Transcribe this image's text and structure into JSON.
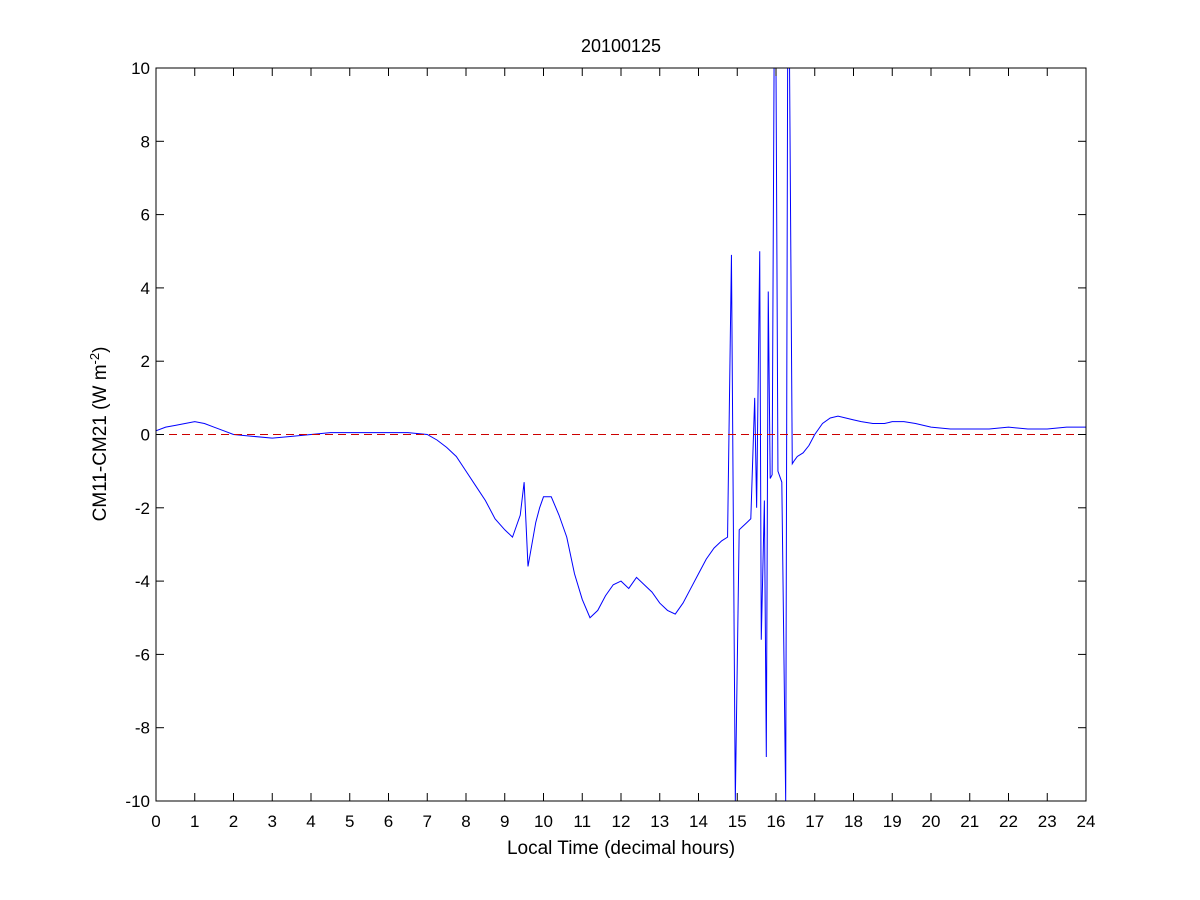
{
  "chart_data": {
    "type": "line",
    "title": "20100125",
    "xlabel": "Local Time (decimal hours)",
    "ylabel_main": "CM11-CM21 (W m",
    "ylabel_sup": "-2",
    "ylabel_close": ")",
    "xlim": [
      0,
      24
    ],
    "ylim": [
      -10,
      10
    ],
    "x_ticks": [
      0,
      1,
      2,
      3,
      4,
      5,
      6,
      7,
      8,
      9,
      10,
      11,
      12,
      13,
      14,
      15,
      16,
      17,
      18,
      19,
      20,
      21,
      22,
      23,
      24
    ],
    "y_ticks": [
      -10,
      -8,
      -6,
      -4,
      -2,
      0,
      2,
      4,
      6,
      8,
      10
    ],
    "grid": false,
    "series": [
      {
        "color": "#0000ff",
        "style": "solid",
        "x": [
          0,
          0.25,
          0.5,
          0.75,
          1.0,
          1.25,
          1.5,
          1.75,
          2.0,
          2.5,
          3.0,
          3.5,
          4.0,
          4.5,
          5.0,
          5.5,
          6.0,
          6.5,
          7.0,
          7.25,
          7.5,
          7.75,
          8.0,
          8.25,
          8.5,
          8.75,
          9.0,
          9.2,
          9.3,
          9.4,
          9.5,
          9.6,
          9.7,
          9.8,
          9.9,
          10.0,
          10.2,
          10.4,
          10.6,
          10.8,
          11.0,
          11.2,
          11.4,
          11.6,
          11.8,
          12.0,
          12.2,
          12.4,
          12.6,
          12.8,
          13.0,
          13.2,
          13.4,
          13.6,
          13.8,
          14.0,
          14.2,
          14.4,
          14.6,
          14.75,
          14.85,
          14.9,
          14.95,
          15.05,
          15.15,
          15.25,
          15.35,
          15.45,
          15.5,
          15.58,
          15.62,
          15.7,
          15.75,
          15.8,
          15.85,
          15.9,
          15.95,
          16.0,
          16.05,
          16.15,
          16.25,
          16.3,
          16.35,
          16.42,
          16.48,
          16.55,
          16.7,
          16.85,
          17.0,
          17.2,
          17.4,
          17.6,
          17.8,
          18.0,
          18.2,
          18.5,
          18.8,
          19.0,
          19.3,
          19.6,
          20.0,
          20.5,
          21.0,
          21.5,
          22.0,
          22.5,
          23.0,
          23.5,
          24.0
        ],
        "y": [
          0.1,
          0.2,
          0.25,
          0.3,
          0.35,
          0.3,
          0.2,
          0.1,
          0.0,
          -0.05,
          -0.1,
          -0.05,
          0.0,
          0.05,
          0.05,
          0.05,
          0.05,
          0.05,
          0.0,
          -0.15,
          -0.35,
          -0.6,
          -1.0,
          -1.4,
          -1.8,
          -2.3,
          -2.6,
          -2.8,
          -2.5,
          -2.2,
          -1.3,
          -3.6,
          -3.0,
          -2.4,
          -2.0,
          -1.7,
          -1.7,
          -2.2,
          -2.8,
          -3.8,
          -4.5,
          -5.0,
          -4.8,
          -4.4,
          -4.1,
          -4.0,
          -4.2,
          -3.9,
          -4.1,
          -4.3,
          -4.6,
          -4.8,
          -4.9,
          -4.6,
          -4.2,
          -3.8,
          -3.4,
          -3.1,
          -2.9,
          -2.8,
          4.9,
          -2.5,
          -10.0,
          -2.6,
          -2.5,
          -2.4,
          -2.3,
          1.0,
          -2.0,
          5.0,
          -5.6,
          -1.8,
          -8.8,
          3.9,
          -1.2,
          -1.1,
          10.0,
          10.0,
          -1.0,
          -1.3,
          -10.0,
          10.0,
          10.0,
          -0.8,
          -0.7,
          -0.6,
          -0.5,
          -0.3,
          0.0,
          0.3,
          0.45,
          0.5,
          0.45,
          0.4,
          0.35,
          0.3,
          0.3,
          0.35,
          0.35,
          0.3,
          0.2,
          0.15,
          0.15,
          0.15,
          0.2,
          0.15,
          0.15,
          0.2,
          0.2
        ]
      },
      {
        "color": "#cc0000",
        "style": "dashed",
        "x": [
          0,
          24
        ],
        "y": [
          0,
          0
        ]
      }
    ]
  }
}
